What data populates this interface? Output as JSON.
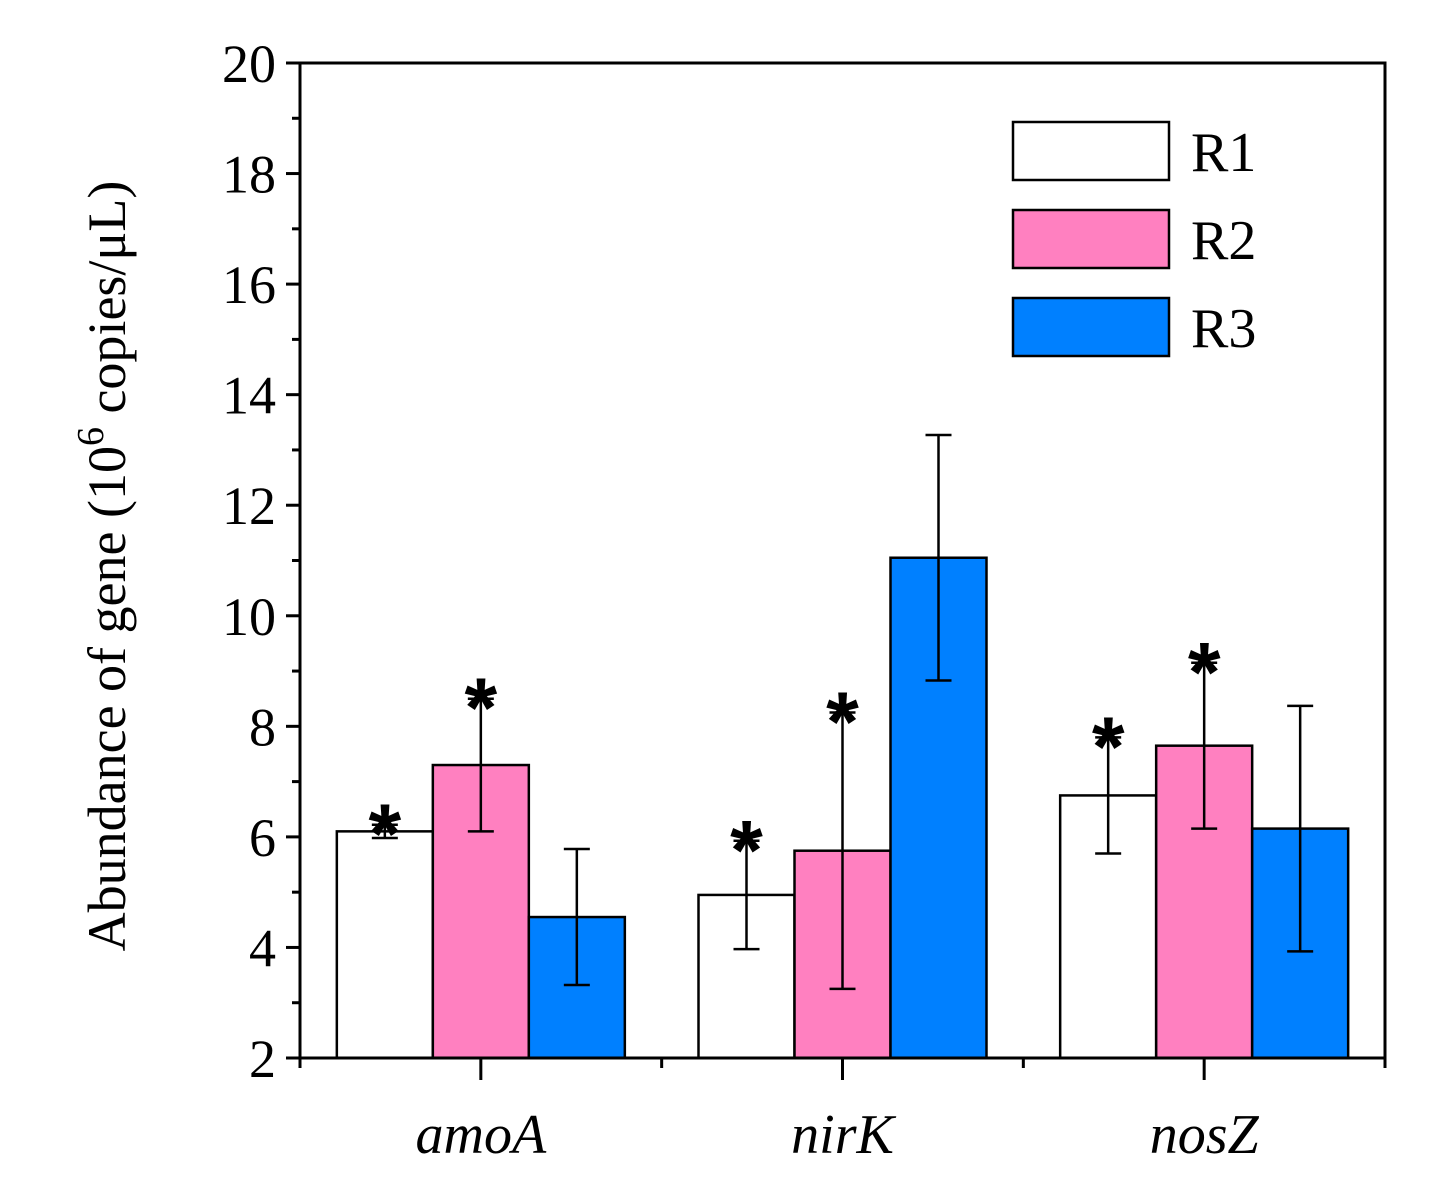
{
  "chart_data": {
    "type": "bar",
    "categories": [
      "amoA",
      "nirK",
      "nosZ"
    ],
    "series": [
      {
        "name": "R1",
        "color": "#ffffff",
        "values": [
          6.1,
          4.95,
          6.75
        ],
        "errors": [
          0.12,
          0.98,
          1.05
        ],
        "significant": [
          true,
          true,
          true
        ]
      },
      {
        "name": "R2",
        "color": "#ff80c0",
        "values": [
          7.3,
          5.75,
          7.65
        ],
        "errors": [
          1.2,
          2.5,
          1.5
        ],
        "significant": [
          true,
          true,
          true
        ]
      },
      {
        "name": "R3",
        "color": "#0080ff",
        "values": [
          4.55,
          11.05,
          6.15
        ],
        "errors": [
          1.23,
          2.22,
          2.22
        ],
        "significant": [
          false,
          false,
          false
        ]
      }
    ],
    "significance_marker": "*",
    "ylabel": "Abundance of gene (10",
    "ylabel_superscript": "6",
    "ylabel_suffix": " copies/μL)",
    "ylim": [
      2,
      20
    ],
    "yticks": [
      "2",
      "4",
      "6",
      "8",
      "10",
      "12",
      "14",
      "16",
      "18",
      "20"
    ],
    "legend_position": "top-right"
  }
}
